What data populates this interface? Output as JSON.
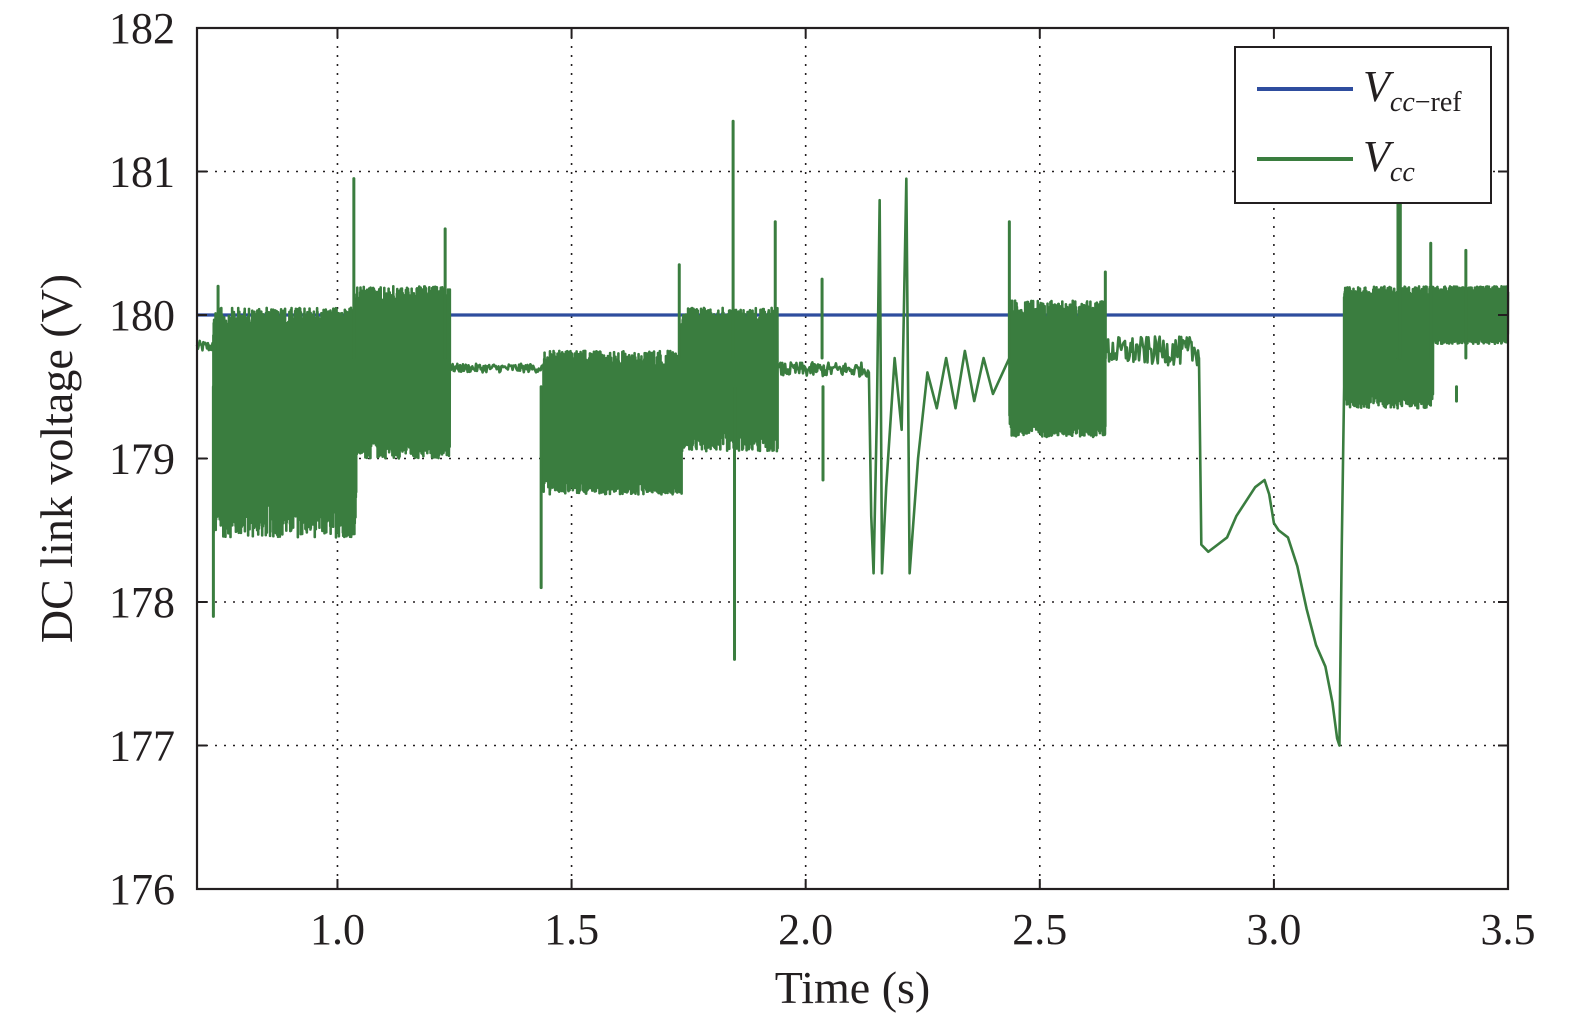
{
  "chart_data": {
    "type": "line",
    "title": "",
    "xlabel": "Time (s)",
    "ylabel": "DC link voltage (V)",
    "xlim": [
      0.7,
      3.5
    ],
    "ylim": [
      176,
      182
    ],
    "x_ticks": [
      1.0,
      1.5,
      2.0,
      2.5,
      3.0,
      3.5
    ],
    "x_tick_labels": [
      "1.0",
      "1.5",
      "2.0",
      "2.5",
      "3.0",
      "3.5"
    ],
    "y_ticks": [
      176,
      177,
      178,
      179,
      180,
      181,
      182
    ],
    "y_tick_labels": [
      "176",
      "177",
      "178",
      "179",
      "180",
      "181",
      "182"
    ],
    "grid": true,
    "legend_position": "top-right",
    "series": [
      {
        "name": "Vcc−ref",
        "legend_main": "V",
        "legend_sub": "cc−ref",
        "color": "#2e4d9e",
        "kind": "constant",
        "x": [
          0.7,
          3.5
        ],
        "y": [
          180.0,
          180.0
        ]
      },
      {
        "name": "Vcc",
        "legend_main": "V",
        "legend_sub": "cc",
        "color": "#3a7d3f",
        "kind": "segments",
        "segments": [
          {
            "mode": "flat",
            "x0": 0.7,
            "x1": 0.735,
            "c": 179.78,
            "a": 0.04
          },
          {
            "mode": "osc",
            "x0": 0.735,
            "x1": 1.04,
            "lo": 178.45,
            "hi": 180.05,
            "c": 179.4
          },
          {
            "mode": "osc",
            "x0": 1.04,
            "x1": 1.24,
            "lo": 179.0,
            "hi": 180.2,
            "c": 179.6
          },
          {
            "mode": "flat",
            "x0": 1.24,
            "x1": 1.44,
            "c": 179.63,
            "a": 0.03
          },
          {
            "mode": "osc",
            "x0": 1.44,
            "x1": 1.735,
            "lo": 178.75,
            "hi": 179.75,
            "c": 179.25
          },
          {
            "mode": "osc",
            "x0": 1.735,
            "x1": 1.94,
            "lo": 179.05,
            "hi": 180.05,
            "c": 179.6
          },
          {
            "mode": "flat",
            "x0": 1.94,
            "x1": 2.135,
            "c": 179.62,
            "a": 0.05
          },
          {
            "mode": "path",
            "points": [
              [
                2.135,
                179.6
              ],
              [
                2.14,
                178.6
              ],
              [
                2.145,
                178.2
              ],
              [
                2.152,
                179.3
              ],
              [
                2.158,
                180.8
              ],
              [
                2.163,
                178.2
              ],
              [
                2.172,
                178.8
              ],
              [
                2.19,
                179.7
              ],
              [
                2.205,
                179.2
              ],
              [
                2.215,
                180.95
              ],
              [
                2.222,
                178.2
              ],
              [
                2.24,
                179.0
              ],
              [
                2.26,
                179.6
              ],
              [
                2.28,
                179.35
              ],
              [
                2.3,
                179.7
              ],
              [
                2.32,
                179.35
              ],
              [
                2.34,
                179.75
              ],
              [
                2.36,
                179.4
              ],
              [
                2.38,
                179.7
              ],
              [
                2.4,
                179.45
              ],
              [
                2.435,
                179.7
              ]
            ]
          },
          {
            "mode": "osc",
            "x0": 2.435,
            "x1": 2.64,
            "lo": 179.15,
            "hi": 180.1,
            "c": 179.6
          },
          {
            "mode": "flat",
            "x0": 2.64,
            "x1": 2.84,
            "c": 179.75,
            "a": 0.1
          },
          {
            "mode": "path",
            "points": [
              [
                2.84,
                179.7
              ],
              [
                2.845,
                178.4
              ],
              [
                2.86,
                178.35
              ],
              [
                2.88,
                178.4
              ],
              [
                2.9,
                178.45
              ],
              [
                2.92,
                178.6
              ],
              [
                2.94,
                178.7
              ],
              [
                2.96,
                178.8
              ],
              [
                2.98,
                178.85
              ],
              [
                2.99,
                178.75
              ],
              [
                3.0,
                178.55
              ],
              [
                3.01,
                178.5
              ],
              [
                3.03,
                178.45
              ],
              [
                3.05,
                178.25
              ],
              [
                3.07,
                177.95
              ],
              [
                3.09,
                177.7
              ],
              [
                3.11,
                177.55
              ],
              [
                3.125,
                177.3
              ],
              [
                3.135,
                177.05
              ],
              [
                3.14,
                177.0
              ],
              [
                3.145,
                178.4
              ],
              [
                3.15,
                179.5
              ]
            ]
          },
          {
            "mode": "osc",
            "x0": 3.15,
            "x1": 3.34,
            "lo": 179.35,
            "hi": 180.2,
            "c": 179.8
          },
          {
            "mode": "osc",
            "x0": 3.34,
            "x1": 3.5,
            "lo": 179.8,
            "hi": 180.2,
            "c": 180.0
          }
        ],
        "spikes": [
          {
            "x": 0.735,
            "y": 177.9
          },
          {
            "x": 0.745,
            "y": 180.2
          },
          {
            "x": 1.035,
            "y": 180.95
          },
          {
            "x": 1.23,
            "y": 180.6
          },
          {
            "x": 1.435,
            "y": 178.1
          },
          {
            "x": 1.73,
            "y": 180.35
          },
          {
            "x": 1.845,
            "y": 181.35
          },
          {
            "x": 1.848,
            "y": 177.6
          },
          {
            "x": 1.935,
            "y": 180.65
          },
          {
            "x": 2.035,
            "y": 180.25
          },
          {
            "x": 2.037,
            "y": 178.85
          },
          {
            "x": 2.435,
            "y": 180.65
          },
          {
            "x": 2.64,
            "y": 180.3
          },
          {
            "x": 3.265,
            "y": 180.95
          },
          {
            "x": 3.27,
            "y": 180.8
          },
          {
            "x": 3.335,
            "y": 180.5
          },
          {
            "x": 3.39,
            "y": 179.4
          },
          {
            "x": 3.41,
            "y": 180.45
          }
        ]
      }
    ]
  }
}
